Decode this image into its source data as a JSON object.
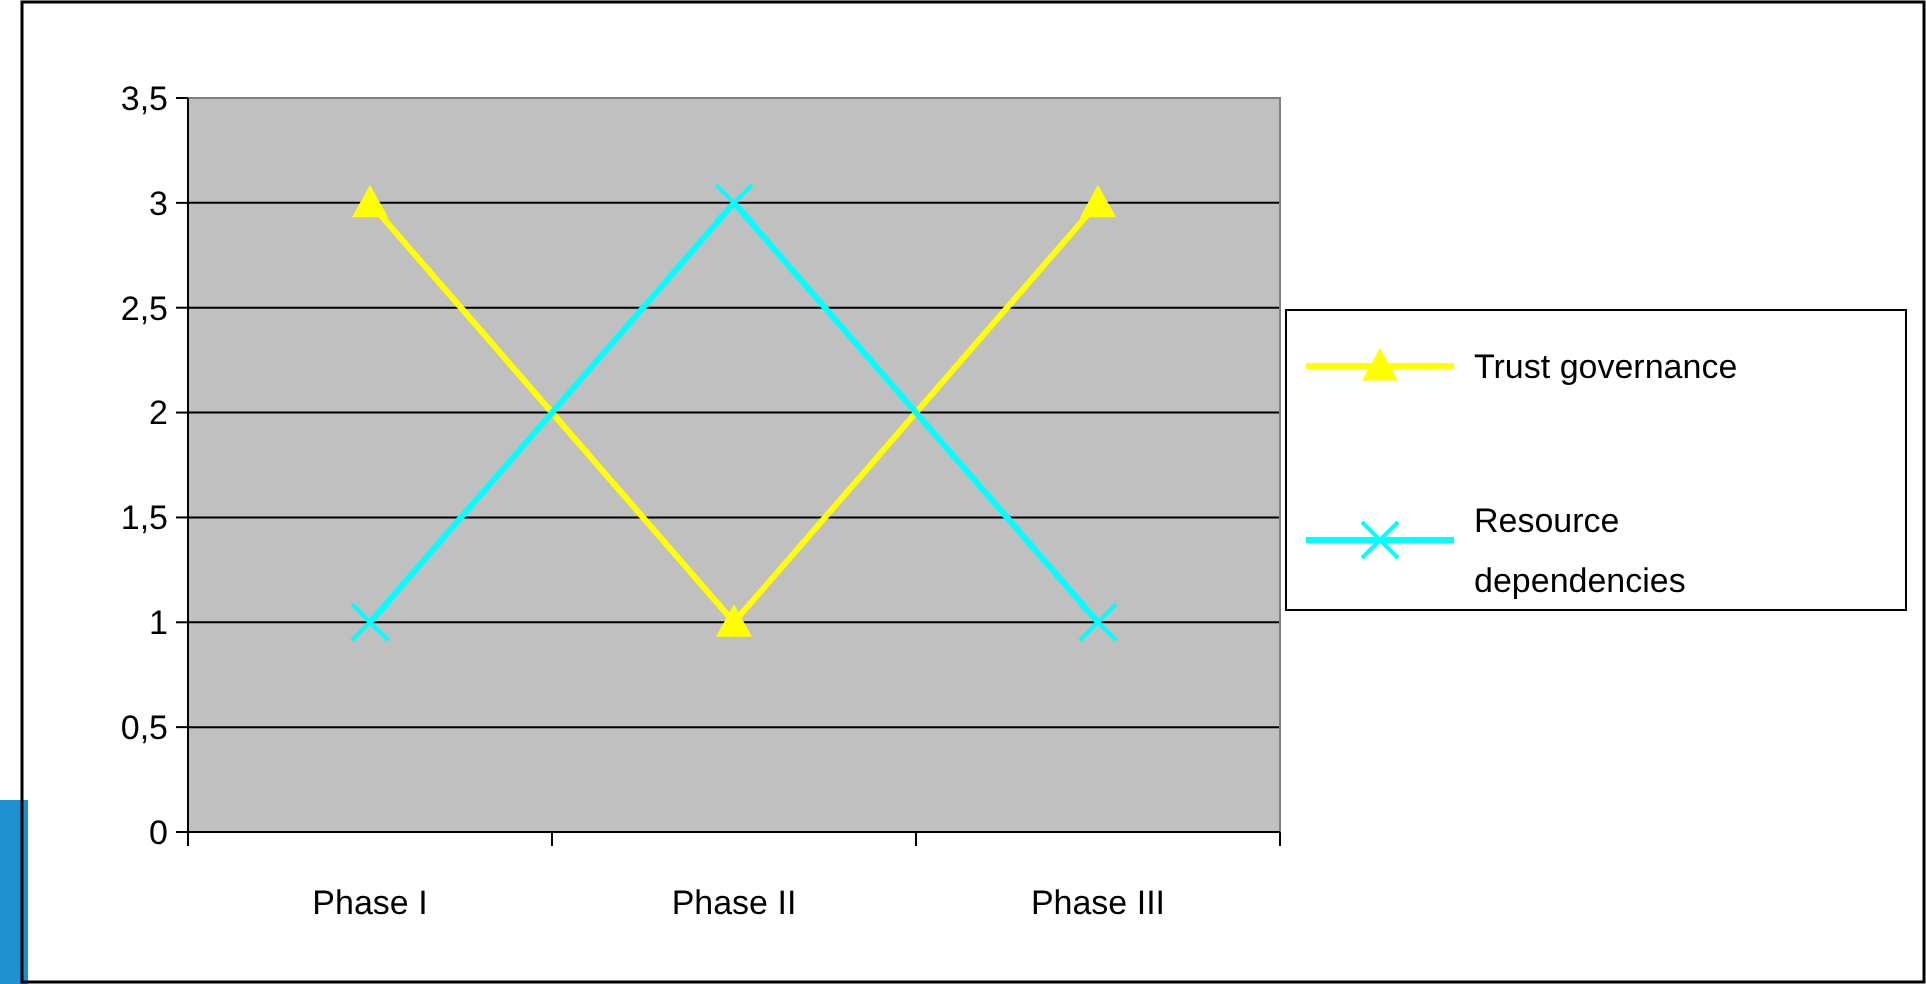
{
  "chart_data": {
    "type": "line",
    "categories": [
      "Phase I",
      "Phase II",
      "Phase III"
    ],
    "series": [
      {
        "name": "Trust governance",
        "color": "#ffff00",
        "values": [
          3,
          1,
          3
        ],
        "marker": "triangle"
      },
      {
        "name": "Resource dependencies",
        "color": "#00ffff",
        "values": [
          1,
          3,
          1
        ],
        "marker": "cross"
      }
    ],
    "ylim": [
      0,
      3.5
    ],
    "yticks": [
      0,
      {
        "value": 0.5,
        "label": "0,5"
      },
      1,
      {
        "value": 1.5,
        "label": "1,5"
      },
      2,
      {
        "value": 2.5,
        "label": "2,5"
      },
      3,
      {
        "value": 3.5,
        "label": "3,5"
      }
    ],
    "grid": "y",
    "legend": "right",
    "line_style": "solid"
  }
}
